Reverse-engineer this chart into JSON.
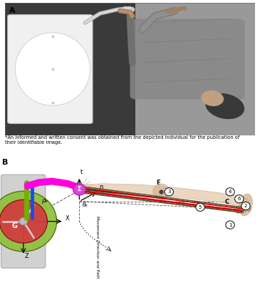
{
  "fig_width": 3.65,
  "fig_height": 4.0,
  "dpi": 100,
  "bg_color": "#ffffff",
  "panel_A_label": "A",
  "panel_B_label": "B",
  "consent_text": "*An informed and written consent was obtained from the depicted individual for the publication of\ntheir identifiable image.",
  "consent_fontsize": 4.8,
  "panel_label_fontsize": 8,
  "wheel_outer": "#90c040",
  "wheel_inner": "#d04040",
  "magenta_bar": "#ff00dd",
  "green_bar": "#70b000",
  "blue_bar": "#1050ee",
  "shoulder_color": "#cc44cc",
  "arm_skin": "#e8d0b0",
  "upper_arm_skin": "#ddc8a0",
  "line_dark": "#404030",
  "line_red": "#cc0000",
  "axis_color": "#000000",
  "dashed_color": "#404040",
  "label_t": "t",
  "label_n": "n",
  "label_X": "X",
  "label_Z": "Z",
  "label_G": "G",
  "label_E": "E",
  "label_C": "C",
  "label_SO": "S,O",
  "label_theta": "θₑ",
  "label_rho": "ρₑ",
  "label_sigma": "Σ",
  "label_movement": "Movement Direction and Path",
  "numbers": [
    "1",
    "2",
    "3",
    "4",
    "5",
    "6"
  ],
  "num_pos_x": [
    8.85,
    9.45,
    6.5,
    8.85,
    7.7,
    9.2
  ],
  "num_pos_y": [
    2.55,
    3.35,
    3.95,
    3.95,
    3.3,
    3.65
  ]
}
